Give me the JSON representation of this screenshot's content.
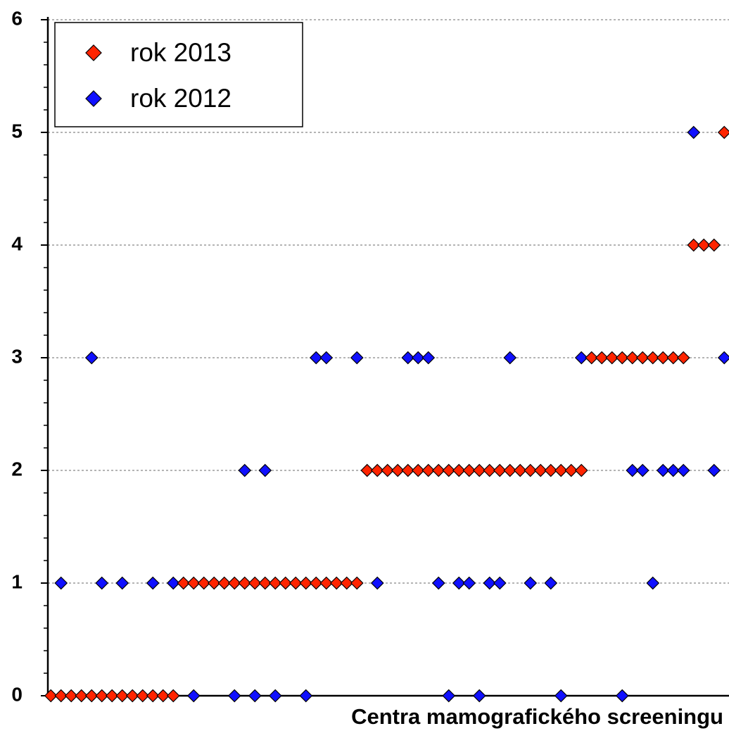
{
  "chart_data": {
    "type": "scatter",
    "x_label": "Centra mamografického screeningu",
    "categories": [
      null,
      null,
      null,
      null,
      null,
      null,
      null,
      null,
      null,
      null,
      null,
      null,
      null,
      null,
      null,
      null,
      null,
      null,
      null,
      null,
      null,
      null,
      null,
      null,
      null,
      null,
      null,
      null,
      null,
      null,
      null,
      null,
      null,
      null,
      null,
      null,
      null,
      null,
      null,
      null,
      null,
      null,
      null,
      null,
      null,
      null,
      null,
      null,
      null,
      null,
      null,
      null,
      null,
      null,
      null,
      null,
      null,
      null,
      null,
      null,
      null,
      null,
      null,
      null,
      null,
      null,
      null
    ],
    "series": [
      {
        "name": "rok 2013",
        "color": "#ff2400",
        "values": [
          0,
          0,
          0,
          0,
          0,
          0,
          0,
          0,
          0,
          0,
          0,
          0,
          0,
          1,
          1,
          1,
          1,
          1,
          1,
          1,
          1,
          1,
          1,
          1,
          1,
          1,
          1,
          1,
          1,
          1,
          1,
          2,
          2,
          2,
          2,
          2,
          2,
          2,
          2,
          2,
          2,
          2,
          2,
          2,
          2,
          2,
          2,
          2,
          2,
          2,
          2,
          2,
          2,
          3,
          3,
          3,
          3,
          3,
          3,
          3,
          3,
          3,
          3,
          4,
          4,
          4,
          5
        ]
      },
      {
        "name": "rok 2012",
        "color": "#1010ff",
        "values": [
          null,
          1,
          null,
          null,
          3,
          1,
          null,
          1,
          null,
          null,
          1,
          null,
          1,
          null,
          0,
          null,
          null,
          null,
          0,
          2,
          0,
          2,
          0,
          null,
          null,
          0,
          3,
          3,
          null,
          null,
          3,
          null,
          1,
          null,
          null,
          3,
          3,
          3,
          1,
          0,
          1,
          1,
          0,
          1,
          1,
          3,
          null,
          1,
          null,
          1,
          0,
          null,
          3,
          null,
          null,
          null,
          0,
          2,
          2,
          1,
          2,
          2,
          2,
          5,
          null,
          2,
          3
        ]
      }
    ],
    "ylim": [
      0,
      6
    ],
    "yticks": [
      0,
      1,
      2,
      3,
      4,
      5,
      6
    ],
    "grid": true,
    "legend": "upper left"
  }
}
